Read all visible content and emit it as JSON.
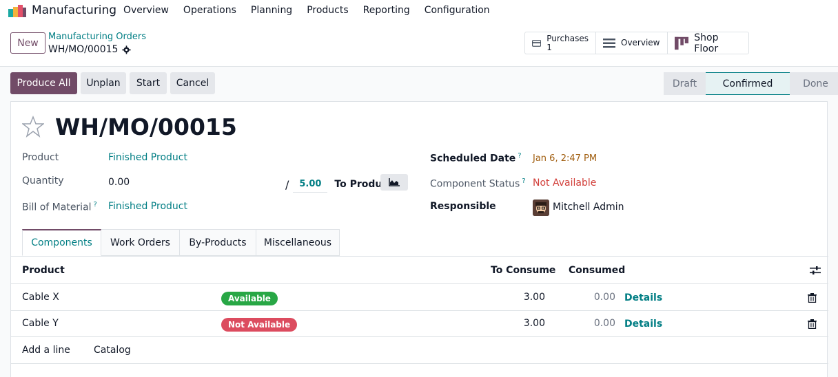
{
  "app": {
    "name": "Manufacturing",
    "menu": [
      "Overview",
      "Operations",
      "Planning",
      "Products",
      "Reporting",
      "Configuration"
    ]
  },
  "control": {
    "new_label": "New",
    "breadcrumb_parent": "Manufacturing Orders",
    "breadcrumb_current": "WH/MO/00015",
    "smart": {
      "purchases_label": "Purchases",
      "purchases_count": "1",
      "overview_label": "Overview",
      "shop_floor_label": "Shop Floor"
    }
  },
  "actions": {
    "produce_all": "Produce All",
    "unplan": "Unplan",
    "start": "Start",
    "cancel": "Cancel"
  },
  "stages": {
    "draft": "Draft",
    "confirmed": "Confirmed",
    "done": "Done",
    "current": "Confirmed"
  },
  "form": {
    "title": "WH/MO/00015",
    "product_label": "Product",
    "product_value": "Finished Product",
    "quantity_label": "Quantity",
    "quantity_value": "0.00",
    "quantity_sep": "/",
    "quantity_target": "5.00",
    "to_produce": "To Produce",
    "bom_label": "Bill of Material",
    "bom_value": "Finished Product",
    "help_mark": "?",
    "scheduled_label": "Scheduled Date",
    "scheduled_value": "Jan 6, 2:47 PM",
    "component_status_label": "Component Status",
    "component_status_value": "Not Available",
    "responsible_label": "Responsible",
    "responsible_value": "Mitchell Admin"
  },
  "tabs": [
    "Components",
    "Work Orders",
    "By-Products",
    "Miscellaneous"
  ],
  "table": {
    "columns": {
      "product": "Product",
      "to_consume": "To Consume",
      "consumed": "Consumed"
    },
    "rows": [
      {
        "product": "Cable X",
        "status": "Available",
        "to_consume": "3.00",
        "consumed": "0.00",
        "details": "Details"
      },
      {
        "product": "Cable Y",
        "status": "Not Available",
        "to_consume": "3.00",
        "consumed": "0.00",
        "details": "Details"
      }
    ],
    "add_line": "Add a line",
    "catalog": "Catalog"
  },
  "colors": {
    "brand": "#714b67",
    "link": "#017e84",
    "success": "#28a745",
    "danger": "#dc4c5f",
    "scheduled": "#a05d0e"
  },
  "icons": [
    "app-logo-icon",
    "gear-icon",
    "credit-card-icon",
    "list-icon",
    "shop-floor-icon",
    "star-icon",
    "area-chart-icon",
    "optional-columns-icon",
    "trash-icon"
  ]
}
